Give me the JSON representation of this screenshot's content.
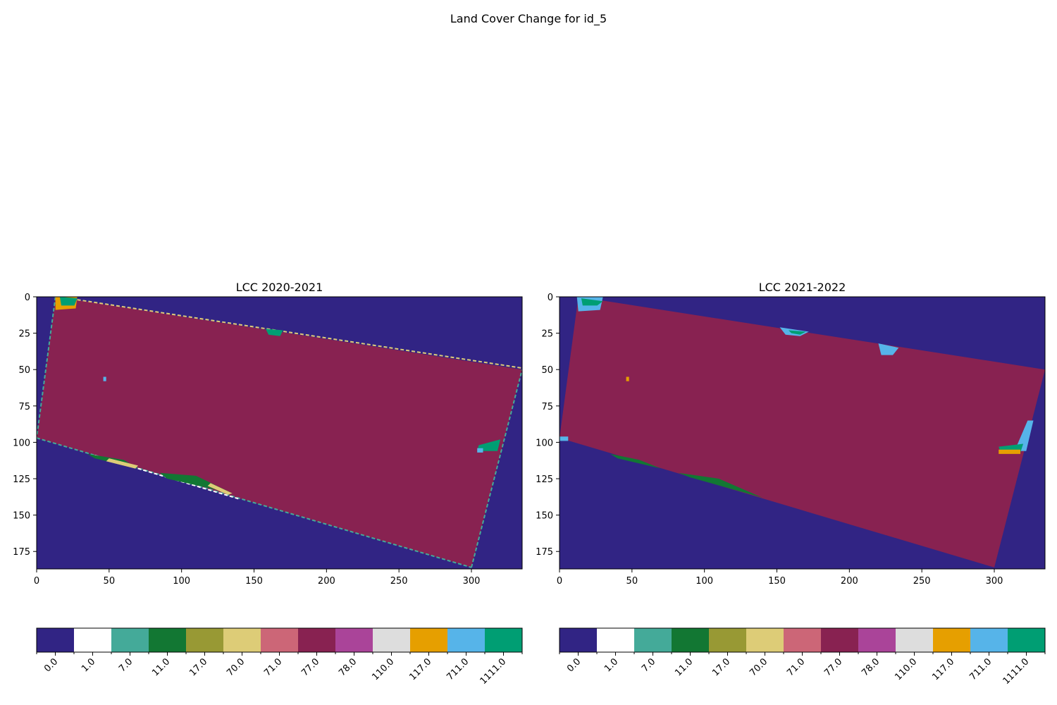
{
  "figure": {
    "suptitle": "Land Cover Change for id_5"
  },
  "colors": {
    "background": "#312484",
    "field": "#882251",
    "classes": [
      "#312484",
      "#ffffff",
      "#44aa99",
      "#127733",
      "#989934",
      "#ddcc77",
      "#cc6677",
      "#882251",
      "#aa4499",
      "#dddddd",
      "#e69f00",
      "#56b4e9",
      "#009e73"
    ]
  },
  "chart_data": [
    {
      "type": "heatmap",
      "title": "LCC 2020-2021",
      "xlabel": "",
      "ylabel": "",
      "x_ticks": [
        0,
        50,
        100,
        150,
        200,
        250,
        300
      ],
      "y_ticks": [
        0,
        25,
        50,
        75,
        100,
        125,
        150,
        175
      ],
      "xlim": [
        0,
        335
      ],
      "ylim": [
        187,
        0
      ],
      "grid": false,
      "field_polygon": [
        [
          13,
          0
        ],
        [
          335,
          50
        ],
        [
          300,
          186
        ],
        [
          0,
          97
        ]
      ],
      "features": [
        {
          "class": "117.0",
          "points": [
            [
              13,
              0
            ],
            [
              28,
              0
            ],
            [
              27,
              8
            ],
            [
              13,
              9
            ]
          ]
        },
        {
          "class": "1111.0",
          "points": [
            [
              16,
              0
            ],
            [
              28,
              1
            ],
            [
              26,
              6
            ],
            [
              17,
              6
            ]
          ]
        },
        {
          "class": "1111.0",
          "points": [
            [
              158,
              22
            ],
            [
              170,
              23
            ],
            [
              168,
              27
            ],
            [
              160,
              26
            ]
          ]
        },
        {
          "class": "711.0",
          "points": [
            [
              46,
              55
            ],
            [
              48,
              55
            ],
            [
              48,
              58
            ],
            [
              46,
              58
            ]
          ]
        },
        {
          "class": "1111.0",
          "points": [
            [
              305,
              102
            ],
            [
              320,
              98
            ],
            [
              318,
              106
            ],
            [
              304,
              106
            ]
          ]
        },
        {
          "class": "711.0",
          "points": [
            [
              304,
              104
            ],
            [
              308,
              104
            ],
            [
              308,
              107
            ],
            [
              304,
              107
            ]
          ]
        },
        {
          "class": "11.0",
          "points": [
            [
              35,
              108
            ],
            [
              60,
              112
            ],
            [
              70,
              118
            ],
            [
              40,
              111
            ]
          ]
        },
        {
          "class": "11.0",
          "points": [
            [
              85,
              121
            ],
            [
              110,
              123
            ],
            [
              135,
              135
            ],
            [
              90,
              125
            ]
          ]
        },
        {
          "class": "70.0",
          "points": [
            [
              50,
              111
            ],
            [
              70,
              116
            ],
            [
              68,
              118
            ],
            [
              48,
              113
            ]
          ]
        },
        {
          "class": "70.0",
          "points": [
            [
              120,
              128
            ],
            [
              135,
              135
            ],
            [
              132,
              136
            ],
            [
              118,
              130
            ]
          ]
        }
      ],
      "edge_lines": [
        {
          "class": "70.0",
          "points": [
            [
              28,
              2
            ],
            [
              335,
              49
            ]
          ]
        },
        {
          "class": "7.0",
          "points": [
            [
              0,
              97
            ],
            [
              300,
              186
            ]
          ]
        },
        {
          "class": "7.0",
          "points": [
            [
              300,
              186
            ],
            [
              335,
              50
            ]
          ]
        },
        {
          "class": "7.0",
          "points": [
            [
              13,
              0
            ],
            [
              0,
              97
            ]
          ]
        },
        {
          "class": "1.0",
          "points": [
            [
              40,
              109
            ],
            [
              140,
              139
            ]
          ]
        }
      ],
      "colorbar": {
        "labels": [
          "0.0",
          "1.0",
          "7.0",
          "11.0",
          "17.0",
          "70.0",
          "71.0",
          "77.0",
          "78.0",
          "110.0",
          "117.0",
          "711.0",
          "1111.0"
        ]
      }
    },
    {
      "type": "heatmap",
      "title": "LCC 2021-2022",
      "xlabel": "",
      "ylabel": "",
      "x_ticks": [
        0,
        50,
        100,
        150,
        200,
        250,
        300
      ],
      "y_ticks": [
        0,
        25,
        50,
        75,
        100,
        125,
        150,
        175
      ],
      "xlim": [
        0,
        335
      ],
      "ylim": [
        187,
        0
      ],
      "grid": false,
      "field_polygon": [
        [
          13,
          0
        ],
        [
          335,
          50
        ],
        [
          300,
          186
        ],
        [
          0,
          97
        ]
      ],
      "features": [
        {
          "class": "711.0",
          "points": [
            [
              12,
              0
            ],
            [
              30,
              0
            ],
            [
              28,
              9
            ],
            [
              13,
              10
            ]
          ]
        },
        {
          "class": "1111.0",
          "points": [
            [
              15,
              1
            ],
            [
              30,
              3
            ],
            [
              26,
              6
            ],
            [
              16,
              6
            ]
          ]
        },
        {
          "class": "711.0",
          "points": [
            [
              152,
              21
            ],
            [
              172,
              24
            ],
            [
              166,
              27
            ],
            [
              156,
              26
            ]
          ]
        },
        {
          "class": "1111.0",
          "points": [
            [
              158,
              23
            ],
            [
              170,
              24
            ],
            [
              166,
              26
            ],
            [
              160,
              25
            ]
          ]
        },
        {
          "class": "711.0",
          "points": [
            [
              220,
              32
            ],
            [
              234,
              35
            ],
            [
              230,
              40
            ],
            [
              222,
              40
            ]
          ]
        },
        {
          "class": "117.0",
          "points": [
            [
              46,
              55
            ],
            [
              48,
              55
            ],
            [
              48,
              58
            ],
            [
              46,
              58
            ]
          ]
        },
        {
          "class": "711.0",
          "points": [
            [
              323,
              85
            ],
            [
              327,
              85
            ],
            [
              322,
              106
            ],
            [
              314,
              106
            ]
          ]
        },
        {
          "class": "1111.0",
          "points": [
            [
              303,
              103
            ],
            [
              320,
              101
            ],
            [
              318,
              107
            ],
            [
              304,
              106
            ]
          ]
        },
        {
          "class": "117.0",
          "points": [
            [
              303,
              105
            ],
            [
              318,
              105
            ],
            [
              318,
              108
            ],
            [
              303,
              108
            ]
          ]
        },
        {
          "class": "11.0",
          "points": [
            [
              35,
              108
            ],
            [
              55,
              112
            ],
            [
              70,
              118
            ],
            [
              40,
              111
            ]
          ]
        },
        {
          "class": "11.0",
          "points": [
            [
              82,
              121
            ],
            [
              110,
              125
            ],
            [
              140,
              138
            ],
            [
              90,
              124
            ]
          ]
        },
        {
          "class": "711.0",
          "points": [
            [
              0,
              96
            ],
            [
              6,
              96
            ],
            [
              6,
              99
            ],
            [
              0,
              99
            ]
          ]
        }
      ],
      "edge_lines": [],
      "colorbar": {
        "labels": [
          "0.0",
          "1.0",
          "7.0",
          "11.0",
          "17.0",
          "70.0",
          "71.0",
          "77.0",
          "78.0",
          "110.0",
          "117.0",
          "711.0",
          "1111.0"
        ]
      }
    }
  ]
}
